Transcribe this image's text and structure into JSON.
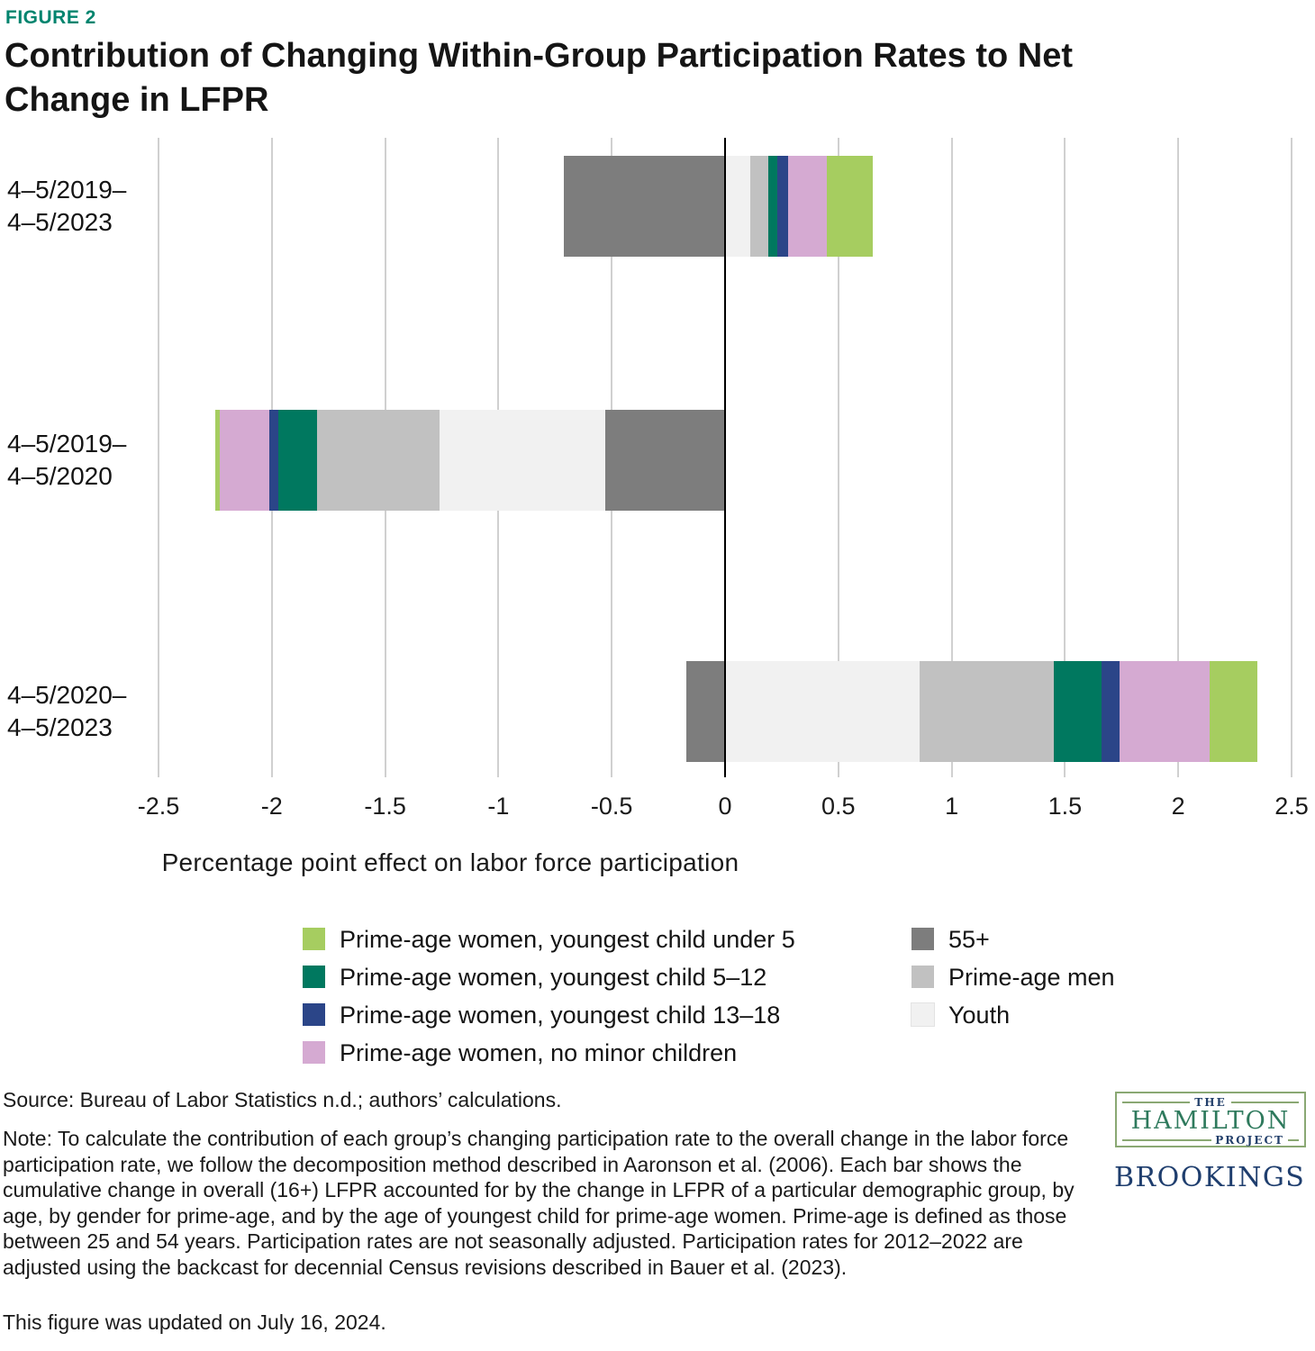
{
  "header": {
    "figure_label": "FIGURE 2",
    "title": "Contribution of Changing Within-Group Participation Rates to Net Change in LFPR"
  },
  "chart_data": {
    "type": "bar",
    "orientation": "horizontal",
    "stacked": true,
    "title": "Contribution of Changing Within-Group Participation Rates to Net Change in LFPR",
    "xlabel": "Percentage point effect on labor force participation",
    "ylabel": "",
    "xlim": [
      -2.5,
      2.5
    ],
    "xticks": [
      -2.5,
      -2,
      -1.5,
      -1,
      -0.5,
      0,
      0.5,
      1,
      1.5,
      2,
      2.5
    ],
    "grid": "vertical gridlines on, zero line emphasized",
    "legend_position": "below",
    "categories": [
      "4–5/2019–\n4–5/2023",
      "4–5/2019–\n4–5/2020",
      "4–5/2020–\n4–5/2023"
    ],
    "series": [
      {
        "name": "55+",
        "color": "#7d7d7d",
        "values": [
          -0.71,
          -0.53,
          -0.17
        ]
      },
      {
        "name": "Youth",
        "color": "#f1f1f1",
        "values": [
          0.11,
          -0.73,
          0.86
        ]
      },
      {
        "name": "Prime-age men",
        "color": "#c1c1c1",
        "values": [
          0.08,
          -0.54,
          0.59
        ]
      },
      {
        "name": "Prime-age women, youngest child 5–12",
        "color": "#00785f",
        "values": [
          0.04,
          -0.17,
          0.21
        ]
      },
      {
        "name": "Prime-age women, youngest child 13–18",
        "color": "#2b4588",
        "values": [
          0.05,
          -0.04,
          0.08
        ]
      },
      {
        "name": "Prime-age women, no minor children",
        "color": "#d5aad2",
        "values": [
          0.17,
          -0.22,
          0.4
        ]
      },
      {
        "name": "Prime-age women, youngest child under 5",
        "color": "#a6cd60",
        "values": [
          0.2,
          -0.02,
          0.21
        ]
      }
    ]
  },
  "legend": {
    "left": [
      {
        "label": "Prime-age women, youngest child under 5",
        "color": "#a6cd60"
      },
      {
        "label": "Prime-age women, youngest child 5–12",
        "color": "#00785f"
      },
      {
        "label": "Prime-age women, youngest child 13–18",
        "color": "#2b4588"
      },
      {
        "label": "Prime-age women, no minor children",
        "color": "#d5aad2"
      }
    ],
    "right": [
      {
        "label": "55+",
        "color": "#7d7d7d"
      },
      {
        "label": "Prime-age men",
        "color": "#c1c1c1"
      },
      {
        "label": "Youth",
        "color": "#f1f1f1"
      }
    ]
  },
  "footer": {
    "source": "Source: Bureau of Labor Statistics n.d.; authors’ calculations.",
    "note": "Note: To calculate the contribution of each group’s changing participation rate to the overall change in the labor force participation rate, we follow the decomposition method described in Aaronson et al. (2006). Each bar shows the cumulative change in overall (16+) LFPR accounted for by the change in LFPR of a particular demographic group, by age, by gender for prime-age, and by the age of youngest child for prime-age women. Prime-age is defined as those between 25 and 54 years. Participation rates are not seasonally adjusted. Participation rates for 2012–2022 are adjusted using the backcast for decennial Census revisions described in Bauer et al. (2023).",
    "updated": "This figure was updated on July 16, 2024."
  },
  "logos": {
    "hamilton": {
      "the": "THE",
      "name": "HAMILTON",
      "project": "PROJECT"
    },
    "brookings": "BROOKINGS"
  },
  "colors": {
    "accent_teal": "#00846e",
    "gridline": "#d0d0d0",
    "zero_line": "#000000",
    "text": "#161616",
    "hamilton_green": "#2f7a5d",
    "hamilton_navy": "#223f6a",
    "brookings_navy": "#1f3e6e"
  }
}
